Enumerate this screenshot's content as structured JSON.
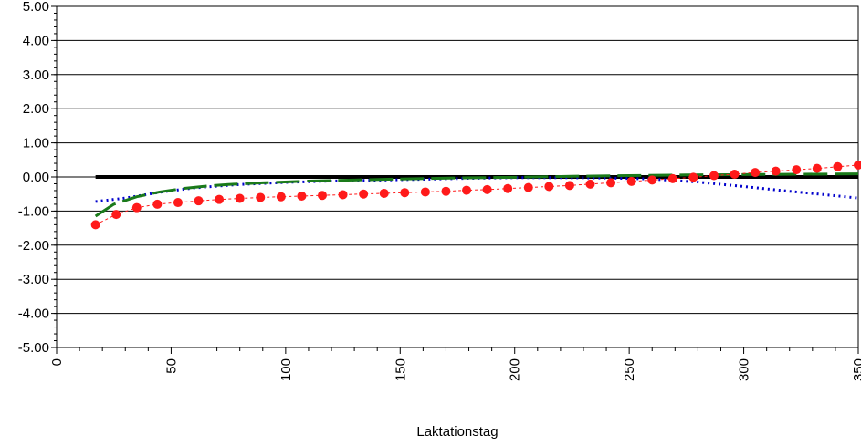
{
  "chart_data": {
    "type": "line",
    "xlabel": "Laktationstag",
    "ylabel": "",
    "xlim": [
      0,
      350
    ],
    "ylim": [
      -5.0,
      5.0
    ],
    "x_ticks": [
      0,
      50,
      100,
      150,
      200,
      250,
      300,
      350
    ],
    "y_ticks": [
      5.0,
      4.0,
      3.0,
      2.0,
      1.0,
      0.0,
      -1.0,
      -2.0,
      -3.0,
      -4.0,
      -5.0
    ],
    "y_tick_labels": [
      "5.00",
      "4.00",
      "3.00",
      "2.00",
      "1.00",
      "0.00",
      "-1.00",
      "-2.00",
      "-3.00",
      "-4.00",
      "-5.00"
    ],
    "x_tick_labels": [
      "0",
      "50",
      "100",
      "150",
      "200",
      "250",
      "300",
      "350"
    ],
    "horizontal_grid": true,
    "series": [
      {
        "style": "solid-thick",
        "color": "#000000",
        "x": [
          17,
          350
        ],
        "y": [
          0.0,
          0.0
        ]
      },
      {
        "style": "dotted",
        "color": "#0000cc",
        "x": [
          17,
          30,
          45,
          60,
          80,
          100,
          120,
          150,
          180,
          200,
          220,
          240,
          260,
          280,
          300,
          320,
          340,
          350
        ],
        "y": [
          -0.72,
          -0.62,
          -0.45,
          -0.32,
          -0.22,
          -0.16,
          -0.12,
          -0.08,
          -0.04,
          -0.02,
          -0.02,
          -0.03,
          -0.06,
          -0.15,
          -0.28,
          -0.42,
          -0.55,
          -0.62
        ]
      },
      {
        "style": "long-dash",
        "color": "#1a7a1a",
        "x": [
          17,
          25,
          35,
          45,
          55,
          65,
          75,
          90,
          110,
          130,
          150,
          175,
          200,
          225,
          250,
          275,
          300,
          325,
          350
        ],
        "y": [
          -1.15,
          -0.8,
          -0.58,
          -0.44,
          -0.34,
          -0.27,
          -0.22,
          -0.17,
          -0.12,
          -0.09,
          -0.06,
          -0.03,
          -0.01,
          0.02,
          0.04,
          0.06,
          0.07,
          0.08,
          0.09
        ]
      },
      {
        "style": "dots-dashed",
        "color": "#ff1a1a",
        "x": [
          17,
          26,
          35,
          44,
          53,
          62,
          71,
          80,
          89,
          98,
          107,
          116,
          125,
          134,
          143,
          152,
          161,
          170,
          179,
          188,
          197,
          206,
          215,
          224,
          233,
          242,
          251,
          260,
          269,
          278,
          287,
          296,
          305,
          314,
          323,
          332,
          341,
          350
        ],
        "y": [
          -1.4,
          -1.1,
          -0.9,
          -0.8,
          -0.75,
          -0.7,
          -0.66,
          -0.63,
          -0.6,
          -0.58,
          -0.56,
          -0.54,
          -0.52,
          -0.5,
          -0.48,
          -0.46,
          -0.44,
          -0.42,
          -0.39,
          -0.37,
          -0.34,
          -0.31,
          -0.28,
          -0.25,
          -0.21,
          -0.17,
          -0.13,
          -0.09,
          -0.05,
          -0.01,
          0.04,
          0.08,
          0.13,
          0.17,
          0.21,
          0.25,
          0.3,
          0.35
        ]
      }
    ]
  }
}
